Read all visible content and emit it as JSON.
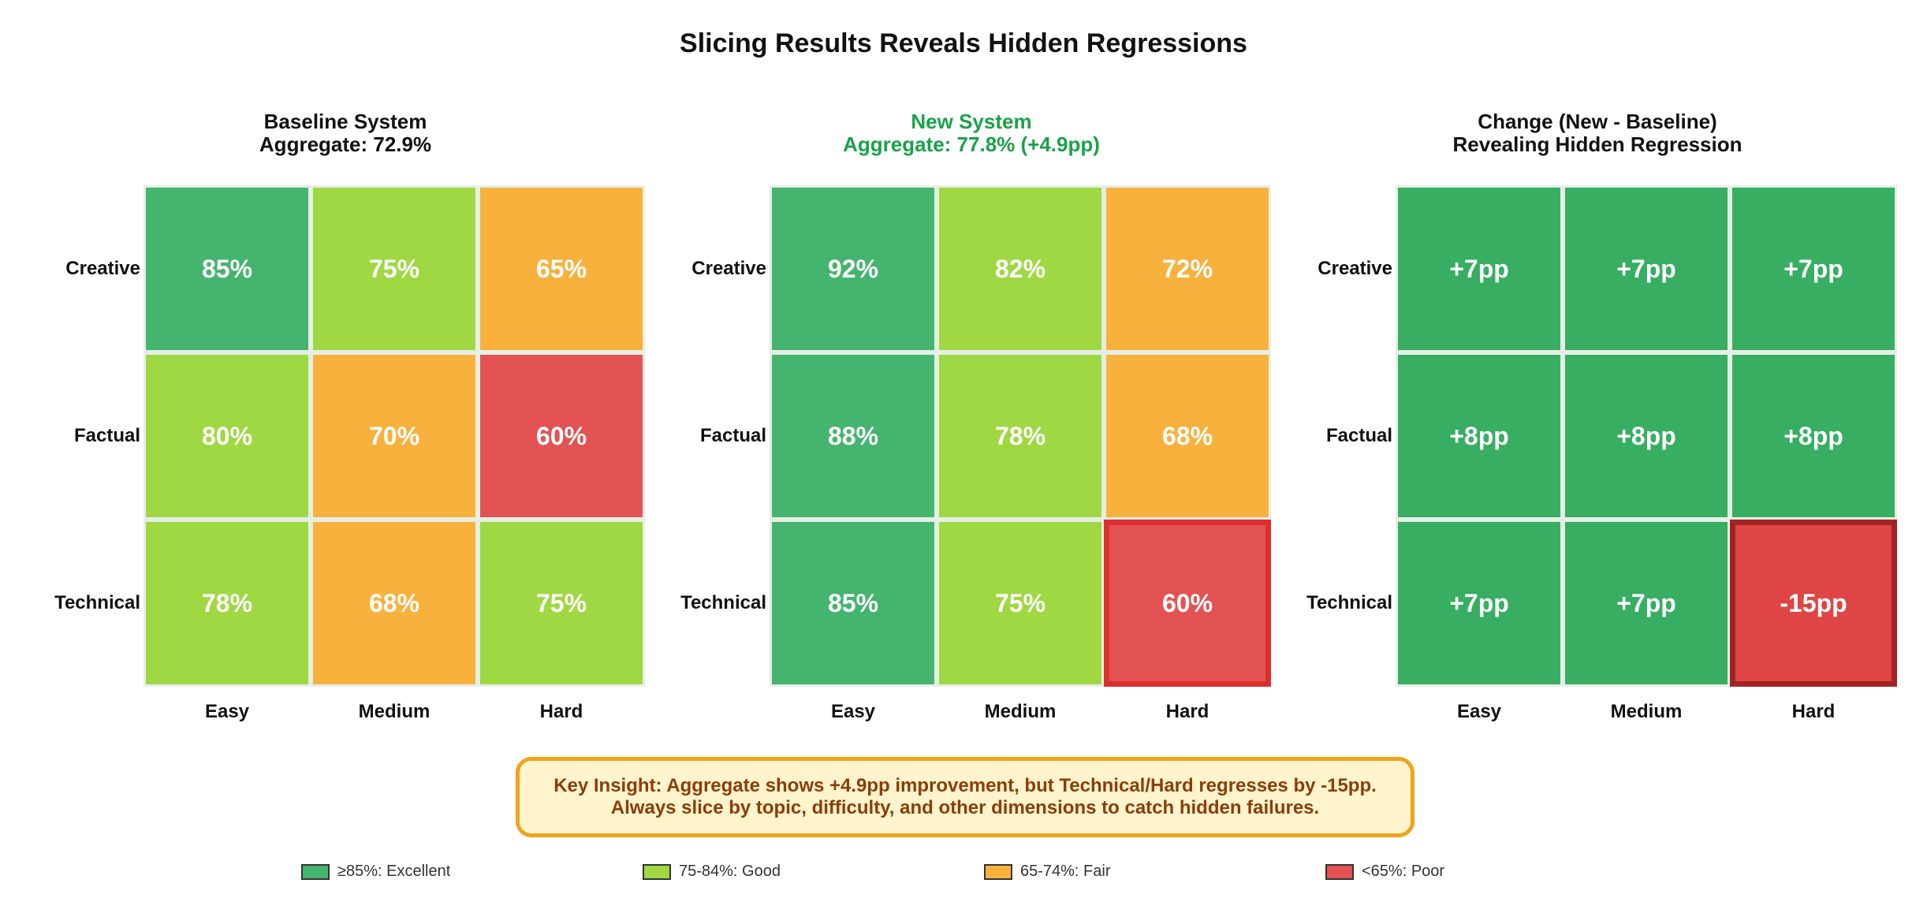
{
  "title": "Slicing Results Reveals Hidden Regressions",
  "colors": {
    "excellent": "#45b46e",
    "good": "#9fd842",
    "fair": "#f8b13d",
    "poor": "#e35252",
    "delta_positive": "#37ae62",
    "delta_negative": "#e04545",
    "new_title": "#1aa24a"
  },
  "chart_data": [
    {
      "type": "heatmap",
      "title_line1": "Baseline System",
      "title_line2": "Aggregate: 72.9%",
      "rows": [
        "Creative",
        "Factual",
        "Technical"
      ],
      "columns": [
        "Easy",
        "Medium",
        "Hard"
      ],
      "values": [
        [
          85,
          75,
          65
        ],
        [
          80,
          70,
          60
        ],
        [
          78,
          68,
          75
        ]
      ],
      "labels": [
        [
          "85%",
          "75%",
          "65%"
        ],
        [
          "80%",
          "70%",
          "60%"
        ],
        [
          "78%",
          "68%",
          "75%"
        ]
      ]
    },
    {
      "type": "heatmap",
      "title_line1": "New System",
      "title_line2": "Aggregate: 77.8% (+4.9pp)",
      "rows": [
        "Creative",
        "Factual",
        "Technical"
      ],
      "columns": [
        "Easy",
        "Medium",
        "Hard"
      ],
      "values": [
        [
          92,
          82,
          72
        ],
        [
          88,
          78,
          68
        ],
        [
          85,
          75,
          60
        ]
      ],
      "labels": [
        [
          "92%",
          "82%",
          "72%"
        ],
        [
          "88%",
          "78%",
          "68%"
        ],
        [
          "85%",
          "75%",
          "60%"
        ]
      ],
      "highlight": [
        "Technical",
        "Hard"
      ]
    },
    {
      "type": "heatmap",
      "title_line1": "Change (New - Baseline)",
      "title_line2": "Revealing Hidden Regression",
      "rows": [
        "Creative",
        "Factual",
        "Technical"
      ],
      "columns": [
        "Easy",
        "Medium",
        "Hard"
      ],
      "values": [
        [
          7,
          7,
          7
        ],
        [
          8,
          8,
          8
        ],
        [
          7,
          7,
          -15
        ]
      ],
      "labels": [
        [
          "+7pp",
          "+7pp",
          "+7pp"
        ],
        [
          "+8pp",
          "+8pp",
          "+8pp"
        ],
        [
          "+7pp",
          "+7pp",
          "-15pp"
        ]
      ],
      "highlight": [
        "Technical",
        "Hard"
      ]
    }
  ],
  "insight": {
    "line1": "Key Insight: Aggregate shows +4.9pp improvement, but Technical/Hard regresses by -15pp.",
    "line2": "Always slice by topic, difficulty, and other dimensions to catch hidden failures."
  },
  "legend": [
    {
      "label": "≥85%: Excellent",
      "color": "#45b46e"
    },
    {
      "label": "75-84%: Good",
      "color": "#9fd842"
    },
    {
      "label": "65-74%: Fair",
      "color": "#f8b13d"
    },
    {
      "label": "<65%: Poor",
      "color": "#e35252"
    }
  ]
}
